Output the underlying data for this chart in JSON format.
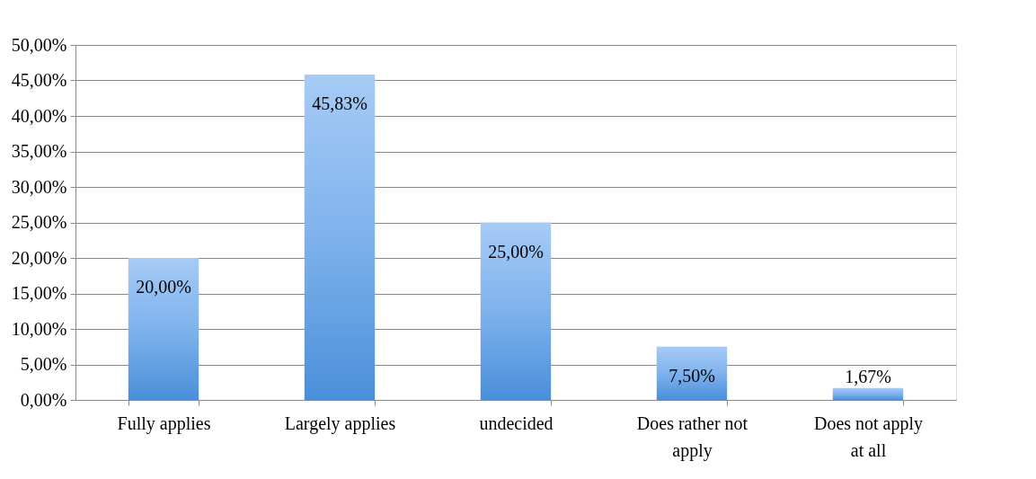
{
  "chart_data": {
    "type": "bar",
    "categories": [
      "Fully applies",
      "Largely applies",
      "undecided",
      "Does rather not apply",
      "Does not apply at all"
    ],
    "values": [
      20.0,
      45.83,
      25.0,
      7.5,
      1.67
    ],
    "value_labels": [
      "20,00%",
      "45,83%",
      "25,00%",
      "7,50%",
      "1,67%"
    ],
    "color": "#7fb2ec",
    "ylim": [
      0,
      50
    ],
    "yticks": [
      {
        "value": 0,
        "label": "0,00%"
      },
      {
        "value": 5,
        "label": "5,00%"
      },
      {
        "value": 10,
        "label": "10,00%"
      },
      {
        "value": 15,
        "label": "15,00%"
      },
      {
        "value": 20,
        "label": "20,00%"
      },
      {
        "value": 25,
        "label": "25,00%"
      },
      {
        "value": 30,
        "label": "30,00%"
      },
      {
        "value": 35,
        "label": "35,00%"
      },
      {
        "value": 40,
        "label": "40,00%"
      },
      {
        "value": 45,
        "label": "45,00%"
      },
      {
        "value": 50,
        "label": "50,00%"
      }
    ],
    "grid": "y"
  }
}
